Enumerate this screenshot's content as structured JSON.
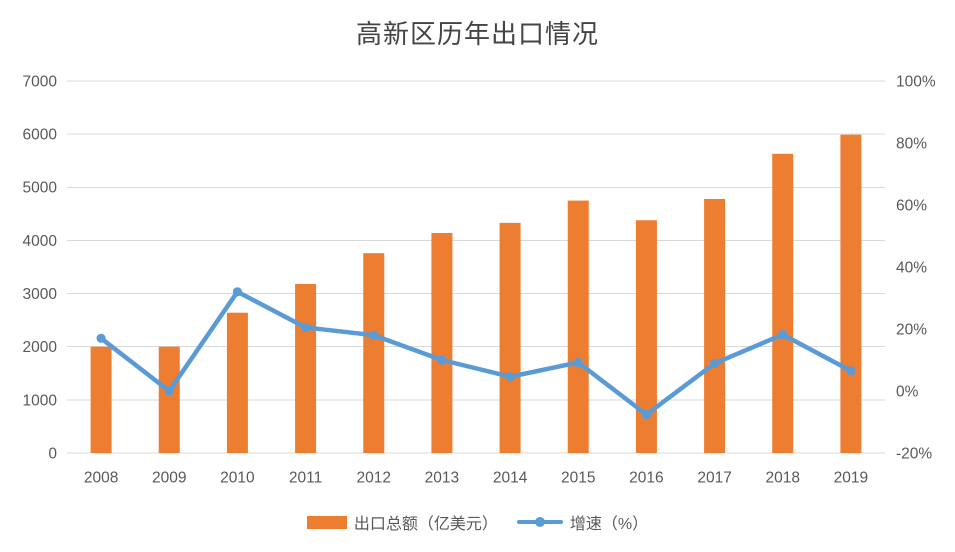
{
  "page": {
    "background": "#FFFFFF"
  },
  "chart_data": {
    "type": "combo",
    "title": "高新区历年出口情况",
    "categories": [
      "2008",
      "2009",
      "2010",
      "2011",
      "2012",
      "2013",
      "2014",
      "2015",
      "2016",
      "2017",
      "2018",
      "2019"
    ],
    "series": [
      {
        "name": "出口总额（亿美元）",
        "type": "bar",
        "axis": "left",
        "color": "#ED7D31",
        "values": [
          2000,
          2000,
          2640,
          3180,
          3760,
          4140,
          4330,
          4750,
          4380,
          4780,
          5630,
          5990
        ]
      },
      {
        "name": "增速（%）",
        "type": "line",
        "axis": "right",
        "color": "#5B9BD5",
        "values": [
          17,
          0,
          32,
          20.5,
          18,
          10,
          4.6,
          9.2,
          -7.6,
          8.9,
          18.2,
          6.5
        ]
      }
    ],
    "left_axis": {
      "min": 0,
      "max": 7000,
      "step": 1000,
      "tick_labels": [
        "7000",
        "6000",
        "5000",
        "4000",
        "3000",
        "2000",
        "1000",
        "0"
      ]
    },
    "right_axis": {
      "min": -20,
      "max": 100,
      "step": 20,
      "tick_labels": [
        "100%",
        "80%",
        "60%",
        "40%",
        "20%",
        "0%",
        "-20%"
      ]
    },
    "grid": true,
    "legend_position": "bottom",
    "colors": {
      "gridline": "#D9D9D9",
      "axis_text": "#595959",
      "title_text": "#444444",
      "bar": "#ED7D31",
      "line": "#5B9BD5"
    }
  }
}
